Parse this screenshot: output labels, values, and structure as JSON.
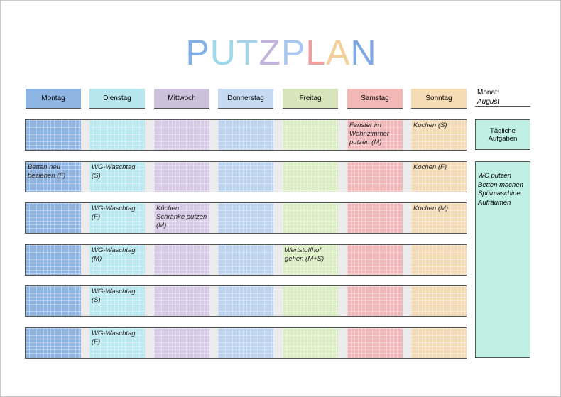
{
  "header": {
    "title": "PUTZPLAN",
    "month_label": "Monat:",
    "month": "August"
  },
  "days": [
    "Montag",
    "Dienstag",
    "Mittwoch",
    "Donnerstag",
    "Freitag",
    "Samstag",
    "Sonntag"
  ],
  "rows": [
    [
      null,
      null,
      null,
      null,
      null,
      "Fenster im Wohnzimmer putzen (M)",
      "Kochen (S)"
    ],
    [
      "Betten neu beziehen (F)",
      "WG-Waschtag (S)",
      null,
      null,
      null,
      null,
      "Kochen (F)"
    ],
    [
      null,
      "WG-Waschtag (F)",
      "Küchen Schränke putzen (M)",
      null,
      null,
      null,
      "Kochen (M)"
    ],
    [
      null,
      "WG-Waschtag (M)",
      null,
      null,
      "Wertstoffhof gehen (M+S)",
      null,
      null
    ],
    [
      null,
      "WG-Waschtag (S)",
      null,
      null,
      null,
      null,
      null
    ],
    [
      null,
      "WG-Waschtag (F)",
      null,
      null,
      null,
      null,
      null
    ]
  ],
  "daily": {
    "title": "Tägliche Aufgaben",
    "tasks": [
      "WC putzen",
      "Betten machen",
      "Spülmaschine",
      "Aufräumen"
    ]
  }
}
